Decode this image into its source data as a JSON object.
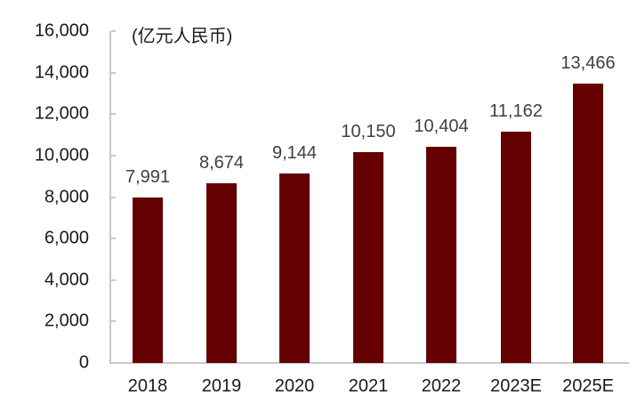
{
  "chart_data": {
    "type": "bar",
    "title": "",
    "unit_label": "(亿元人民币)",
    "xlabel": "",
    "ylabel": "亿元人民币",
    "categories": [
      "2018",
      "2019",
      "2020",
      "2021",
      "2022",
      "2023E",
      "2025E"
    ],
    "values": [
      7991,
      8674,
      9144,
      10150,
      10404,
      11162,
      13466
    ],
    "value_labels": [
      "7,991",
      "8,674",
      "9,144",
      "10,150",
      "10,404",
      "11,162",
      "13,466"
    ],
    "ylim": [
      0,
      16000
    ],
    "yticks": [
      0,
      2000,
      4000,
      6000,
      8000,
      10000,
      12000,
      14000,
      16000
    ],
    "ytick_labels": [
      "0",
      "2,000",
      "4,000",
      "6,000",
      "8,000",
      "10,000",
      "12,000",
      "14,000",
      "16,000"
    ],
    "grid": false,
    "legend": null,
    "bar_color": "#640000"
  }
}
